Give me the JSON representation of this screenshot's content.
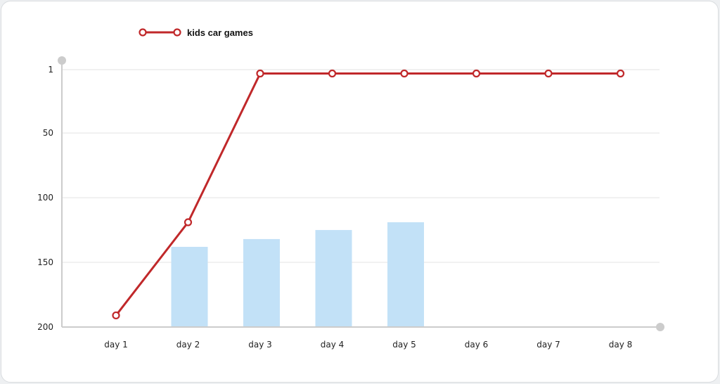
{
  "chart_data": {
    "type": "bar",
    "categories": [
      "day 1",
      "day 2",
      "day 3",
      "day 4",
      "day 5",
      "day 6",
      "day 7",
      "day 8"
    ],
    "y_ticks": [
      1,
      50,
      100,
      150,
      200
    ],
    "ylim": [
      1,
      200
    ],
    "y_inverted": true,
    "grid": true,
    "legend_position": "top-left",
    "series": [
      {
        "name": "",
        "type": "bar",
        "color": "#c2e1f7",
        "values": [
          null,
          138,
          132,
          125,
          119,
          null,
          null,
          null
        ]
      },
      {
        "name": "kids car games",
        "type": "line",
        "color": "#c0282a",
        "values": [
          191,
          119,
          4,
          4,
          4,
          4,
          4,
          4
        ]
      }
    ],
    "colors": {
      "grid": "#e3e3e3",
      "axis": "#cccccc",
      "text": "#222222"
    }
  }
}
